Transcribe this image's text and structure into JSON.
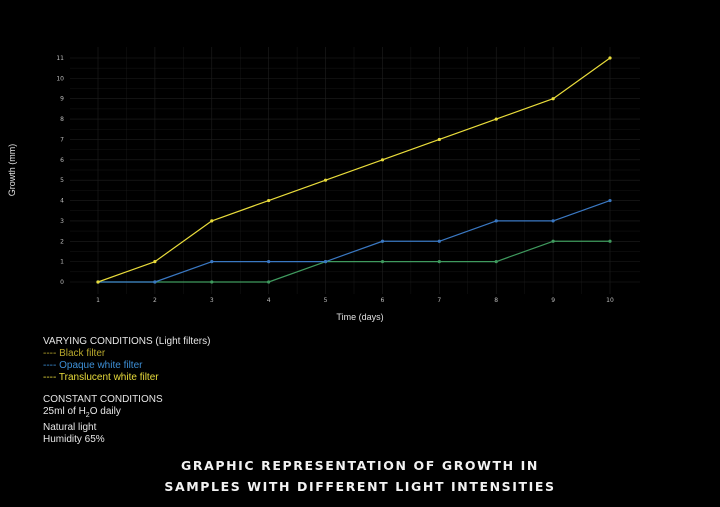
{
  "chart_data": {
    "type": "line",
    "xlabel": "Time (days)",
    "ylabel": "Growth (mm)",
    "x": [
      1,
      2,
      3,
      4,
      5,
      6,
      7,
      8,
      9,
      10
    ],
    "xlim": [
      1,
      10
    ],
    "ylim": [
      0,
      11
    ],
    "x_ticks": [
      "1",
      "2",
      "3",
      "4",
      "5",
      "6",
      "7",
      "8",
      "9",
      "10"
    ],
    "y_ticks": [
      "0",
      "1",
      "2",
      "3",
      "4",
      "5",
      "6",
      "7",
      "8",
      "9",
      "10",
      "11"
    ],
    "grid": true,
    "series": [
      {
        "name": "Black filter",
        "color": "#3f9a5e",
        "values": [
          0,
          0,
          0,
          0,
          1,
          1,
          1,
          1,
          2,
          2
        ]
      },
      {
        "name": "Opaque white filter",
        "color": "#3a78c2",
        "values": [
          0,
          0,
          1,
          1,
          1,
          2,
          2,
          3,
          3,
          4
        ]
      },
      {
        "name": "Translucent white filter",
        "color": "#e9dc3b",
        "values": [
          0,
          1,
          3,
          4,
          5,
          6,
          7,
          8,
          9,
          11
        ]
      }
    ]
  },
  "legend": {
    "varying_heading": "VARYING CONDITIONS (Light filters)",
    "items": [
      {
        "text": "---- Black filter",
        "color": "#b9a92c"
      },
      {
        "text": "---- Opaque white filter",
        "color": "#3d8fd6"
      },
      {
        "text": "---- Translucent white filter",
        "color": "#e9dc3b"
      }
    ],
    "constant_heading": "CONSTANT CONDITIONS",
    "water_prefix": "25ml of H",
    "water_sub": "2",
    "water_suffix": "O daily",
    "light": "Natural light",
    "humidity": "Humidity 65%"
  },
  "caption": {
    "line1": "GRAPHIC REPRESENTATION OF GROWTH IN",
    "line2": "SAMPLES WITH DIFFERENT LIGHT INTENSITIES"
  },
  "colors": {
    "background": "#000000",
    "grid": "#1f1f1f",
    "text": "#e6e6e6"
  }
}
